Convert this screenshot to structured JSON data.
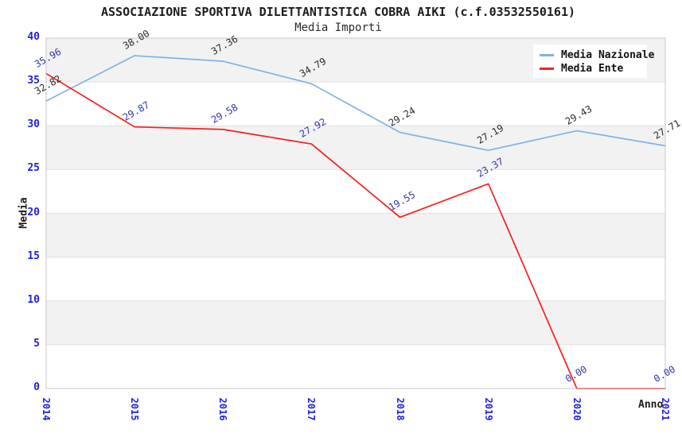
{
  "chart_data": {
    "type": "line",
    "title": "ASSOCIAZIONE SPORTIVA DILETTANTISTICA COBRA AIKI (c.f.03532550161)",
    "subtitle": "Media Importi",
    "xlabel": "Anno",
    "ylabel": "Media",
    "categories": [
      "2014",
      "2015",
      "2016",
      "2017",
      "2018",
      "2019",
      "2020",
      "2021"
    ],
    "series": [
      {
        "name": "Media Nazionale",
        "color": "#7fb2e6",
        "label_color": "#2a2a2a",
        "values": [
          32.82,
          38.0,
          37.36,
          34.79,
          29.24,
          27.19,
          29.43,
          27.71
        ]
      },
      {
        "name": "Media Ente",
        "color": "#f52020",
        "label_color": "#2e36ae",
        "values": [
          35.96,
          29.87,
          29.58,
          27.92,
          19.55,
          23.37,
          0.0,
          0.0
        ]
      }
    ],
    "ylim": [
      0,
      40
    ],
    "yticks": [
      0,
      5,
      10,
      15,
      20,
      25,
      30,
      35,
      40
    ],
    "value_label_decimals": 2,
    "grid": "horizontal-bands",
    "band_color": "#f2f2f2",
    "tick_label_color": "#2020dd",
    "legend_position": "top-right"
  }
}
